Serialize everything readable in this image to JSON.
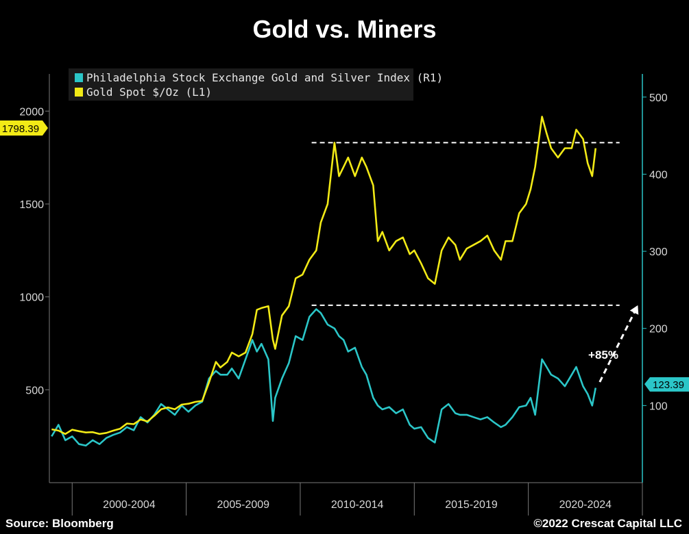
{
  "title": "Gold vs. Miners",
  "footer": {
    "source": "Source: Bloomberg",
    "copyright": "©2022 Crescat Capital LLC"
  },
  "colors": {
    "gold": "#f2ea16",
    "miners": "#2bc6c8",
    "background": "#000000",
    "axis_right": "#2bc6c8",
    "reference_line": "#ffffff"
  },
  "chart_data": {
    "type": "line",
    "title": "Gold vs. Miners",
    "legend_placement": "top-left",
    "grid": false,
    "x_range": [
      1999.0,
      2025.0
    ],
    "x_tick_labels": [
      "2000-2004",
      "2005-2009",
      "2010-2014",
      "2015-2019",
      "2020-2024"
    ],
    "y_left": {
      "ticks": [
        "500",
        "1000",
        "1500",
        "2000"
      ],
      "range": [
        0,
        2200
      ]
    },
    "y_right": {
      "ticks": [
        "100",
        "200",
        "300",
        "400",
        "500"
      ],
      "range": [
        0,
        530
      ]
    },
    "last_value_labels": {
      "gold": "1798.39",
      "miners": "123.39"
    },
    "series": [
      {
        "name": "Gold Spot $/Oz  (L1)",
        "axis": "left",
        "x": [
          1999.1,
          1999.4,
          1999.7,
          2000.0,
          2000.3,
          2000.6,
          2000.9,
          2001.2,
          2001.5,
          2001.8,
          2002.1,
          2002.4,
          2002.7,
          2003.0,
          2003.3,
          2003.6,
          2003.9,
          2004.2,
          2004.5,
          2004.8,
          2005.1,
          2005.4,
          2005.7,
          2006.0,
          2006.3,
          2006.5,
          2006.8,
          2007.0,
          2007.3,
          2007.6,
          2007.9,
          2008.1,
          2008.3,
          2008.6,
          2008.8,
          2008.9,
          2009.2,
          2009.5,
          2009.8,
          2010.1,
          2010.4,
          2010.7,
          2010.9,
          2011.2,
          2011.5,
          2011.7,
          2011.9,
          2012.1,
          2012.4,
          2012.7,
          2012.9,
          2013.2,
          2013.4,
          2013.6,
          2013.9,
          2014.2,
          2014.5,
          2014.8,
          2015.0,
          2015.3,
          2015.6,
          2015.9,
          2016.2,
          2016.5,
          2016.8,
          2017.0,
          2017.3,
          2017.6,
          2017.9,
          2018.2,
          2018.5,
          2018.8,
          2019.0,
          2019.3,
          2019.6,
          2019.9,
          2020.1,
          2020.3,
          2020.6,
          2020.8,
          2021.0,
          2021.3,
          2021.6,
          2021.9,
          2022.1,
          2022.4,
          2022.6,
          2022.8,
          2022.95
        ],
        "values": [
          287,
          280,
          262,
          285,
          277,
          270,
          272,
          262,
          268,
          280,
          290,
          318,
          315,
          340,
          330,
          360,
          395,
          405,
          395,
          420,
          425,
          435,
          440,
          540,
          650,
          620,
          650,
          700,
          680,
          700,
          800,
          930,
          940,
          950,
          770,
          720,
          900,
          950,
          1100,
          1120,
          1200,
          1250,
          1400,
          1500,
          1830,
          1650,
          1700,
          1750,
          1650,
          1750,
          1700,
          1600,
          1300,
          1350,
          1250,
          1300,
          1320,
          1230,
          1250,
          1180,
          1100,
          1070,
          1250,
          1320,
          1280,
          1200,
          1260,
          1280,
          1300,
          1330,
          1250,
          1200,
          1300,
          1300,
          1450,
          1500,
          1580,
          1700,
          1970,
          1880,
          1800,
          1750,
          1800,
          1800,
          1900,
          1850,
          1720,
          1650,
          1800
        ]
      },
      {
        "name": "Philadelphia Stock Exchange Gold and Silver Index  (R1)",
        "axis": "right",
        "x": [
          1999.1,
          1999.4,
          1999.7,
          2000.0,
          2000.3,
          2000.6,
          2000.9,
          2001.2,
          2001.5,
          2001.8,
          2002.1,
          2002.4,
          2002.7,
          2003.0,
          2003.3,
          2003.6,
          2003.9,
          2004.2,
          2004.5,
          2004.8,
          2005.1,
          2005.4,
          2005.7,
          2006.0,
          2006.3,
          2006.5,
          2006.8,
          2007.0,
          2007.3,
          2007.6,
          2007.9,
          2008.1,
          2008.3,
          2008.6,
          2008.8,
          2008.9,
          2009.2,
          2009.5,
          2009.8,
          2010.1,
          2010.4,
          2010.7,
          2010.9,
          2011.2,
          2011.5,
          2011.7,
          2011.9,
          2012.1,
          2012.4,
          2012.7,
          2012.9,
          2013.2,
          2013.4,
          2013.6,
          2013.9,
          2014.2,
          2014.5,
          2014.8,
          2015.0,
          2015.3,
          2015.6,
          2015.9,
          2016.2,
          2016.5,
          2016.8,
          2017.0,
          2017.3,
          2017.6,
          2017.9,
          2018.2,
          2018.5,
          2018.8,
          2019.0,
          2019.3,
          2019.6,
          2019.9,
          2020.1,
          2020.3,
          2020.6,
          2020.8,
          2021.0,
          2021.3,
          2021.6,
          2021.9,
          2022.1,
          2022.4,
          2022.6,
          2022.8,
          2022.95
        ],
        "values": [
          60,
          75,
          55,
          60,
          50,
          48,
          55,
          50,
          58,
          62,
          65,
          72,
          68,
          85,
          78,
          88,
          102,
          95,
          88,
          100,
          92,
          100,
          105,
          135,
          145,
          140,
          140,
          148,
          135,
          160,
          185,
          170,
          180,
          160,
          80,
          110,
          135,
          155,
          190,
          185,
          215,
          225,
          220,
          205,
          200,
          190,
          185,
          170,
          175,
          150,
          140,
          110,
          100,
          95,
          98,
          90,
          95,
          75,
          70,
          72,
          58,
          52,
          95,
          102,
          90,
          88,
          88,
          85,
          82,
          85,
          78,
          72,
          75,
          85,
          98,
          100,
          110,
          88,
          160,
          150,
          140,
          135,
          125,
          140,
          150,
          125,
          115,
          100,
          123
        ]
      }
    ],
    "annotations": [
      {
        "type": "dashed-hline",
        "series": "gold",
        "y": 1830,
        "x_from": 2010.5,
        "x_to": 2024.0
      },
      {
        "type": "dashed-hline",
        "series": "miners",
        "y": 230,
        "x_from": 2010.5,
        "x_to": 2024.0
      },
      {
        "type": "arrow",
        "label": "+85%",
        "from": [
          2022.95,
          123.39
        ],
        "to": [
          2024.8,
          230
        ]
      }
    ]
  }
}
